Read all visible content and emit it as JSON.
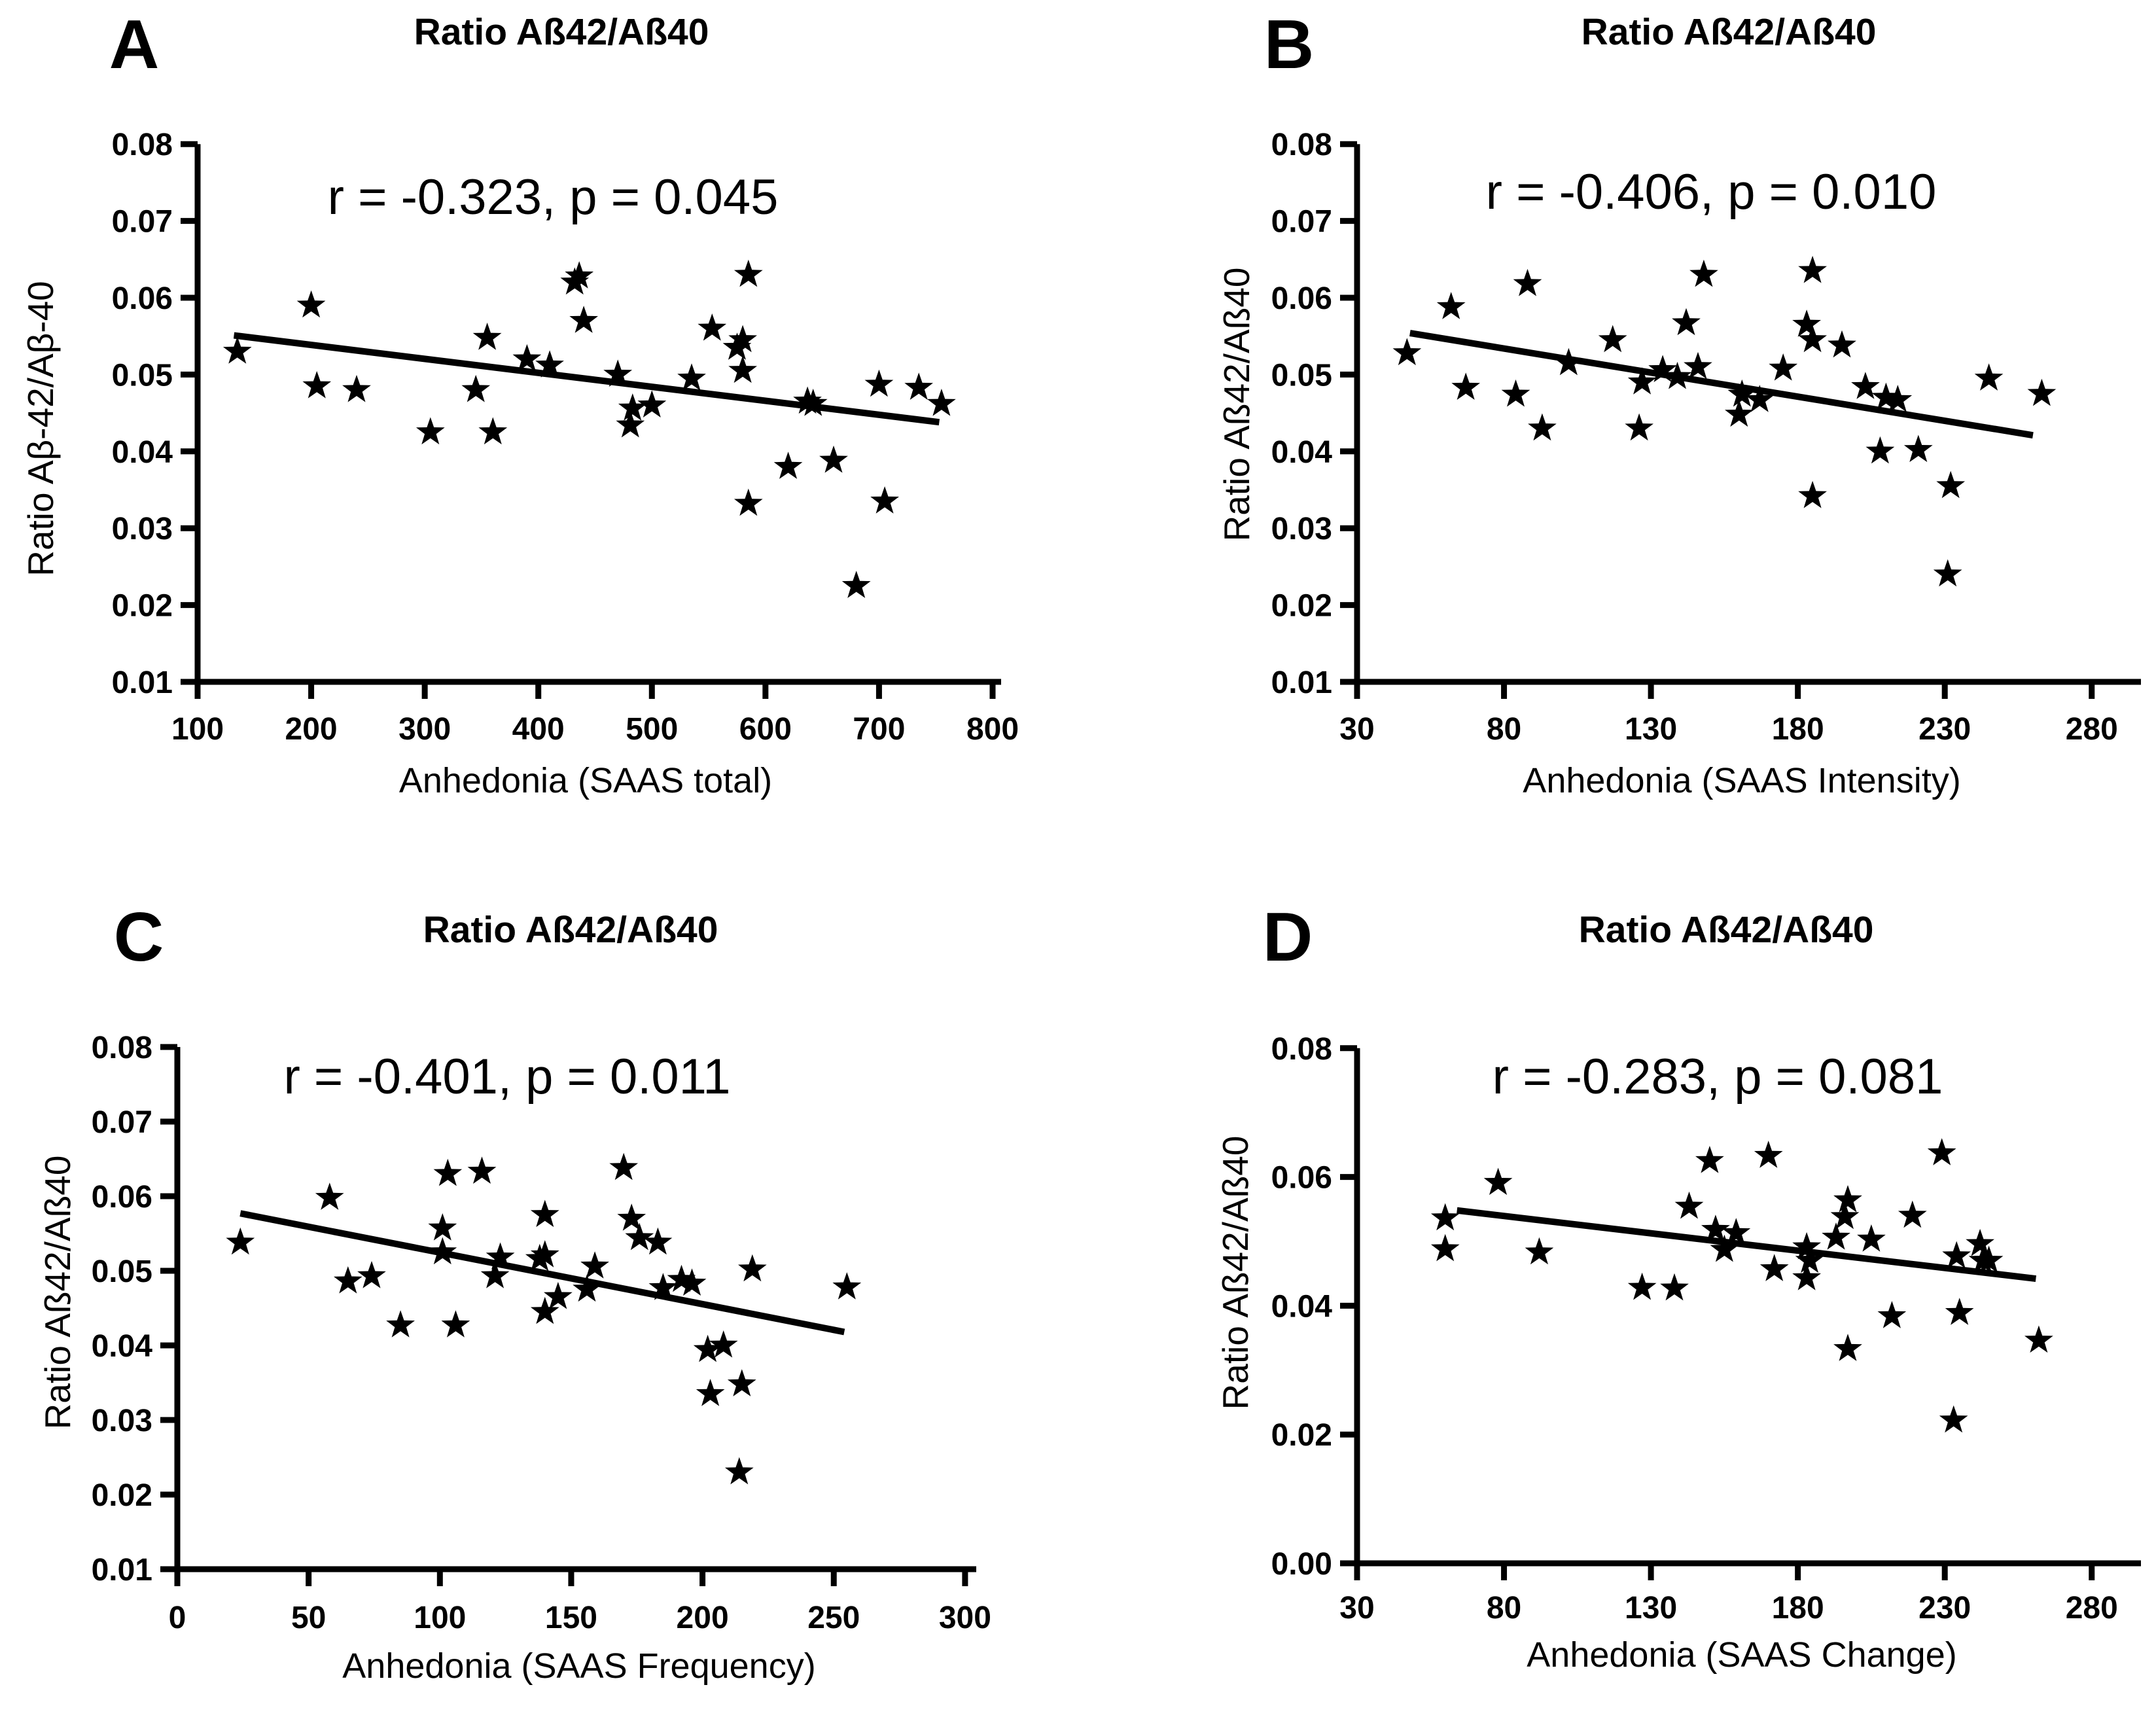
{
  "colors": {
    "ink": "#000000",
    "background": "#ffffff"
  },
  "chart_data": [
    {
      "type": "scatter",
      "panel_letter": "A",
      "title": "Ratio Aß42/Aß40",
      "annotation": "r = -0.323, p = 0.045",
      "xlabel": "Anhedonia (SAAS total)",
      "ylabel": "Ratio Aβ-42/Aβ-40",
      "xlim": [
        100,
        800
      ],
      "ylim": [
        0.01,
        0.08
      ],
      "x_ticks": [
        100,
        200,
        300,
        400,
        500,
        600,
        700,
        800
      ],
      "y_ticks": [
        "0.08",
        "0.07",
        "0.06",
        "0.05",
        "0.04",
        "0.03",
        "0.02",
        "0.01"
      ],
      "legend": "none",
      "grid": false,
      "marker": "star",
      "points": [
        [
          135,
          0.053
        ],
        [
          200,
          0.059
        ],
        [
          205,
          0.0485
        ],
        [
          240,
          0.048
        ],
        [
          305,
          0.0425
        ],
        [
          345,
          0.048
        ],
        [
          355,
          0.0548
        ],
        [
          360,
          0.0425
        ],
        [
          390,
          0.052
        ],
        [
          410,
          0.0512
        ],
        [
          432,
          0.062
        ],
        [
          436,
          0.0628
        ],
        [
          440,
          0.057
        ],
        [
          470,
          0.05
        ],
        [
          481,
          0.0434
        ],
        [
          483,
          0.0456
        ],
        [
          500,
          0.046
        ],
        [
          535,
          0.0495
        ],
        [
          553,
          0.056
        ],
        [
          575,
          0.0535
        ],
        [
          580,
          0.0545
        ],
        [
          580,
          0.0505
        ],
        [
          585,
          0.063
        ],
        [
          585,
          0.0332
        ],
        [
          620,
          0.038
        ],
        [
          637,
          0.0465
        ],
        [
          642,
          0.0462
        ],
        [
          660,
          0.0388
        ],
        [
          680,
          0.0225
        ],
        [
          700,
          0.0487
        ],
        [
          705,
          0.0335
        ],
        [
          735,
          0.0483
        ],
        [
          755,
          0.0462
        ]
      ],
      "trend_line": {
        "x1": 132,
        "y1": 0.0551,
        "x2": 753,
        "y2": 0.0438
      }
    },
    {
      "type": "scatter",
      "panel_letter": "B",
      "title": "Ratio Aß42/Aß40",
      "annotation": "r = -0.406, p = 0.010",
      "xlabel": "Anhedonia (SAAS Intensity)",
      "ylabel": "Ratio Aß42/Aß40",
      "xlim": [
        30,
        280
      ],
      "ylim": [
        0.01,
        0.08
      ],
      "x_ticks": [
        30,
        80,
        130,
        180,
        230,
        280
      ],
      "y_ticks": [
        "0.08",
        "0.07",
        "0.06",
        "0.05",
        "0.04",
        "0.03",
        "0.02",
        "0.01"
      ],
      "legend": "none",
      "grid": false,
      "marker": "star",
      "points": [
        [
          47,
          0.0528
        ],
        [
          62,
          0.0588
        ],
        [
          67,
          0.0483
        ],
        [
          84,
          0.0474
        ],
        [
          88,
          0.0618
        ],
        [
          93,
          0.043
        ],
        [
          102,
          0.0515
        ],
        [
          117,
          0.0545
        ],
        [
          126,
          0.043
        ],
        [
          127,
          0.049
        ],
        [
          134,
          0.0506
        ],
        [
          139,
          0.0497
        ],
        [
          142,
          0.0567
        ],
        [
          146,
          0.051
        ],
        [
          148,
          0.063
        ],
        [
          160,
          0.0448
        ],
        [
          161,
          0.0474
        ],
        [
          167,
          0.0467
        ],
        [
          175,
          0.0508
        ],
        [
          183,
          0.0565
        ],
        [
          185,
          0.0545
        ],
        [
          185,
          0.0635
        ],
        [
          185,
          0.0342
        ],
        [
          195,
          0.0538
        ],
        [
          203,
          0.0484
        ],
        [
          208,
          0.04
        ],
        [
          210,
          0.047
        ],
        [
          214,
          0.0467
        ],
        [
          221,
          0.0402
        ],
        [
          231,
          0.024
        ],
        [
          232,
          0.0355
        ],
        [
          245,
          0.0495
        ],
        [
          263,
          0.0475
        ]
      ],
      "trend_line": {
        "x1": 48,
        "y1": 0.0554,
        "x2": 260,
        "y2": 0.0421
      }
    },
    {
      "type": "scatter",
      "panel_letter": "C",
      "title": "Ratio Aß42/Aß40",
      "annotation": "r = -0.401, p = 0.011",
      "xlabel": "Anhedonia (SAAS Frequency)",
      "ylabel": "Ratio Aß42/Aß40",
      "xlim": [
        0,
        300
      ],
      "ylim": [
        0.01,
        0.08
      ],
      "x_ticks": [
        0,
        50,
        100,
        150,
        200,
        250,
        300
      ],
      "y_ticks": [
        "0.08",
        "0.07",
        "0.06",
        "0.05",
        "0.04",
        "0.03",
        "0.02",
        "0.01"
      ],
      "legend": "none",
      "grid": false,
      "marker": "star",
      "points": [
        [
          24,
          0.0538
        ],
        [
          58,
          0.0598
        ],
        [
          65,
          0.0486
        ],
        [
          74,
          0.0493
        ],
        [
          85,
          0.0427
        ],
        [
          101,
          0.0557
        ],
        [
          101,
          0.0525
        ],
        [
          103,
          0.063
        ],
        [
          106,
          0.0427
        ],
        [
          116,
          0.0633
        ],
        [
          121,
          0.0493
        ],
        [
          123,
          0.0518
        ],
        [
          138,
          0.0516
        ],
        [
          140,
          0.0575
        ],
        [
          140,
          0.0521
        ],
        [
          140,
          0.0445
        ],
        [
          145,
          0.0465
        ],
        [
          156,
          0.0475
        ],
        [
          159,
          0.0506
        ],
        [
          170,
          0.0638
        ],
        [
          173,
          0.057
        ],
        [
          176,
          0.0544
        ],
        [
          183,
          0.0538
        ],
        [
          185,
          0.0477
        ],
        [
          192,
          0.0488
        ],
        [
          196,
          0.0483
        ],
        [
          202,
          0.0394
        ],
        [
          203,
          0.0335
        ],
        [
          208,
          0.04
        ],
        [
          214,
          0.023
        ],
        [
          215,
          0.0348
        ],
        [
          219,
          0.0502
        ],
        [
          255,
          0.0478
        ]
      ],
      "trend_line": {
        "x1": 24,
        "y1": 0.0577,
        "x2": 254,
        "y2": 0.0418
      }
    },
    {
      "type": "scatter",
      "panel_letter": "D",
      "title": "Ratio Aß42/Aß40",
      "annotation": "r = -0.283, p = 0.081",
      "xlabel": "Anhedonia (SAAS Change)",
      "ylabel": "Ratio Aß42/Aß40",
      "xlim": [
        30,
        280
      ],
      "ylim": [
        0.0,
        0.08
      ],
      "x_ticks": [
        30,
        80,
        130,
        180,
        230,
        280
      ],
      "y_ticks": [
        "0.08",
        "0.06",
        "0.04",
        "0.02",
        "0.00"
      ],
      "legend": "none",
      "grid": false,
      "marker": "star",
      "points": [
        [
          60,
          0.0536
        ],
        [
          60,
          0.0488
        ],
        [
          78,
          0.0591
        ],
        [
          92,
          0.0483
        ],
        [
          127,
          0.0428
        ],
        [
          138,
          0.0427
        ],
        [
          143,
          0.0554
        ],
        [
          150,
          0.0625
        ],
        [
          152,
          0.0518
        ],
        [
          155,
          0.0487
        ],
        [
          159,
          0.0513
        ],
        [
          170,
          0.0633
        ],
        [
          172,
          0.0457
        ],
        [
          183,
          0.0491
        ],
        [
          183,
          0.0443
        ],
        [
          184,
          0.047
        ],
        [
          193,
          0.0506
        ],
        [
          196,
          0.0538
        ],
        [
          197,
          0.0564
        ],
        [
          197,
          0.0333
        ],
        [
          205,
          0.0503
        ],
        [
          212,
          0.0384
        ],
        [
          219,
          0.054
        ],
        [
          229,
          0.0637
        ],
        [
          233,
          0.0222
        ],
        [
          234,
          0.0477
        ],
        [
          235,
          0.0389
        ],
        [
          242,
          0.0496
        ],
        [
          243,
          0.047
        ],
        [
          245,
          0.047
        ],
        [
          262,
          0.0346
        ]
      ],
      "trend_line": {
        "x1": 64,
        "y1": 0.0548,
        "x2": 261,
        "y2": 0.0442
      }
    }
  ]
}
